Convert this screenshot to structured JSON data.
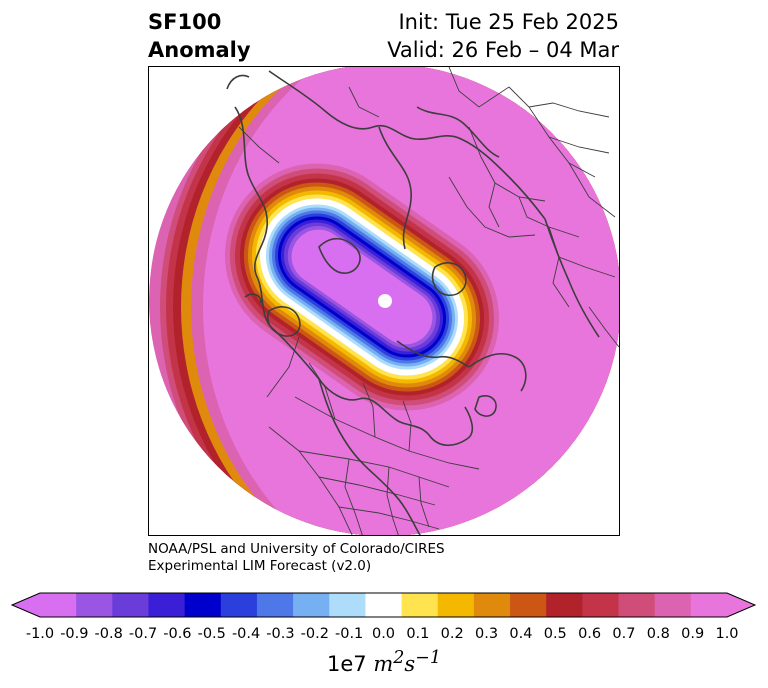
{
  "header": {
    "variable": "SF100",
    "field": "Anomaly",
    "init": "Init: Tue 25 Feb 2025",
    "valid": "Valid: 26 Feb – 04 Mar"
  },
  "map": {
    "projection": "north polar stereographic",
    "region": "Northern Hemisphere (Arctic / North America)",
    "background_anomaly": 0.95,
    "center_anomaly": -0.95
  },
  "credit": {
    "line1": "NOAA/PSL and University of Colorado/CIRES",
    "line2": "Experimental LIM Forecast (v2.0)"
  },
  "colorbar": {
    "ticks": [
      "-1.0",
      "-0.9",
      "-0.8",
      "-0.7",
      "-0.6",
      "-0.5",
      "-0.4",
      "-0.3",
      "-0.2",
      "-0.1",
      "0.0",
      "0.1",
      "0.2",
      "0.3",
      "0.4",
      "0.5",
      "0.6",
      "0.7",
      "0.8",
      "0.9",
      "1.0"
    ],
    "colors": [
      "#d76ff0",
      "#9a55e3",
      "#6a3ddb",
      "#3a1fd6",
      "#0000cc",
      "#2a3fdc",
      "#4e77e8",
      "#76b0f3",
      "#aedcfb",
      "#ffffff",
      "#ffe44f",
      "#f4b800",
      "#e08a0d",
      "#cc5714",
      "#b2222b",
      "#c33449",
      "#cf4d78",
      "#dc63b2",
      "#e875db"
    ],
    "unit_prefix": "1e7 ",
    "unit_m": "m",
    "unit_m_exp": "2",
    "unit_s": "s",
    "unit_s_exp": "−1"
  }
}
